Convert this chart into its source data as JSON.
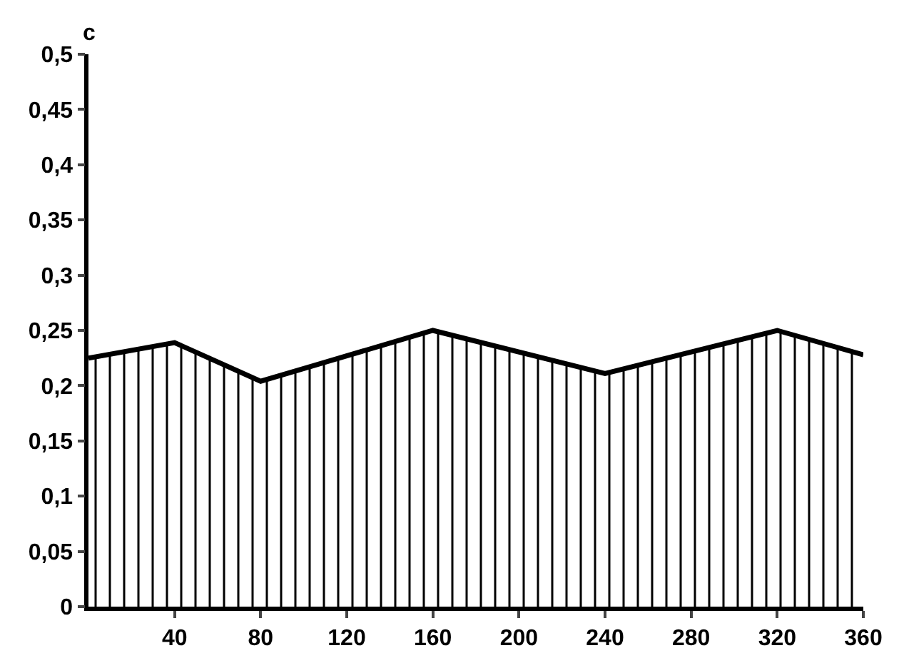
{
  "chart_data": {
    "type": "area",
    "ylabel": "c",
    "x": [
      0,
      40,
      80,
      160,
      240,
      320,
      360
    ],
    "series": [
      {
        "color": "#000000",
        "values": [
          0.225,
          0.239,
          0.204,
          0.25,
          0.211,
          0.25,
          0.228
        ]
      }
    ],
    "xlim": [
      0,
      360
    ],
    "xticks": [
      40,
      80,
      120,
      160,
      200,
      240,
      280,
      320,
      360
    ],
    "ylim": [
      0,
      0.5
    ],
    "yticks": [
      0,
      {
        "value": 0.05,
        "label": "0,05"
      },
      {
        "value": 0.1,
        "label": "0,1"
      },
      {
        "value": 0.15,
        "label": "0,15"
      },
      {
        "value": 0.2,
        "label": "0,2"
      },
      {
        "value": 0.25,
        "label": "0,25"
      },
      {
        "value": 0.3,
        "label": "0,3"
      },
      {
        "value": 0.35,
        "label": "0,35"
      },
      {
        "value": 0.4,
        "label": "0,4"
      },
      {
        "value": 0.45,
        "label": "0,45"
      },
      {
        "value": 0.5,
        "label": "0,5"
      }
    ],
    "grid": false
  }
}
